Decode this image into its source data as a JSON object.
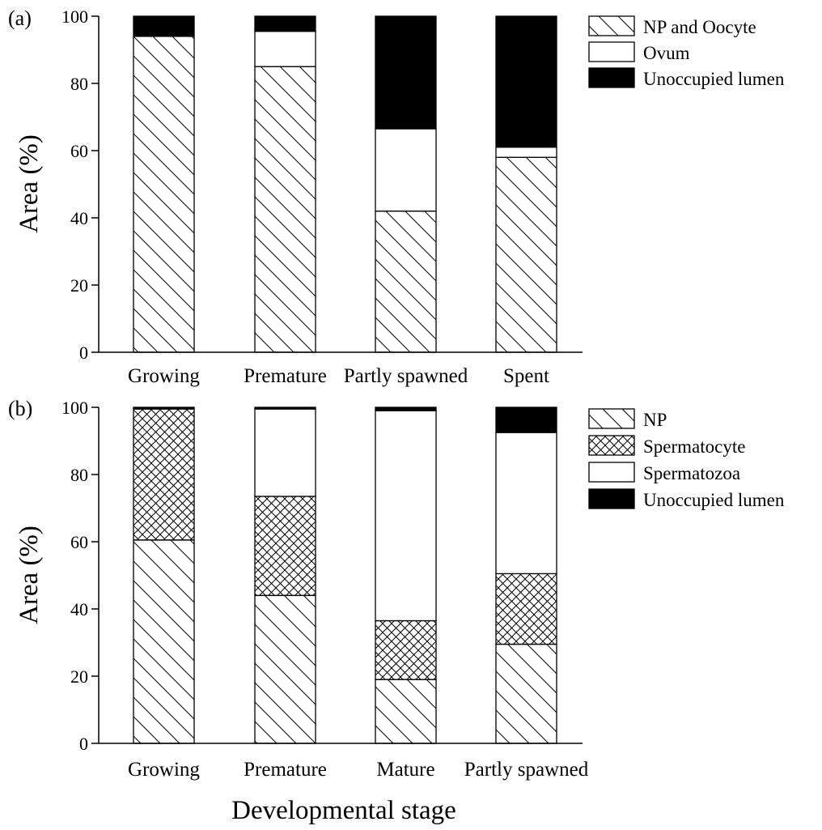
{
  "figure": {
    "xlabel": "Developmental stage"
  },
  "patterns": {
    "hatch": "diagonal",
    "crosshatch": "crosshatch",
    "empty": "empty",
    "solid": "solid"
  },
  "chart_data": [
    {
      "type": "bar",
      "stacked": true,
      "panel_label": "(a)",
      "title": "",
      "xlabel": "",
      "ylabel": "Area (%)",
      "ylim": [
        0,
        100
      ],
      "yticks": [
        0,
        20,
        40,
        60,
        80,
        100
      ],
      "grid": false,
      "legend_position": "top-right",
      "categories": [
        "Growing",
        "Premature",
        "Partly spawned",
        "Spent"
      ],
      "series": [
        {
          "name": "NP and Oocyte",
          "pattern": "diagonal",
          "values": [
            94,
            85,
            42,
            58
          ]
        },
        {
          "name": "Ovum",
          "pattern": "empty",
          "values": [
            0,
            10.5,
            24.5,
            3
          ]
        },
        {
          "name": "Unoccupied lumen",
          "pattern": "solid",
          "values": [
            6,
            4.5,
            33.5,
            39
          ]
        }
      ]
    },
    {
      "type": "bar",
      "stacked": true,
      "panel_label": "(b)",
      "title": "",
      "xlabel": "",
      "ylabel": "Area (%)",
      "ylim": [
        0,
        100
      ],
      "yticks": [
        0,
        20,
        40,
        60,
        80,
        100
      ],
      "grid": false,
      "legend_position": "top-right",
      "categories": [
        "Growing",
        "Premature",
        "Mature",
        "Partly spawned"
      ],
      "series": [
        {
          "name": "NP",
          "pattern": "diagonal",
          "values": [
            60.5,
            44,
            19,
            29.5
          ]
        },
        {
          "name": "Spermatocyte",
          "pattern": "crosshatch",
          "values": [
            39,
            29.5,
            17.5,
            21
          ]
        },
        {
          "name": "Spermatozoa",
          "pattern": "empty",
          "values": [
            0,
            26,
            62.5,
            42
          ]
        },
        {
          "name": "Unoccupied lumen",
          "pattern": "solid",
          "values": [
            0.5,
            0.5,
            1,
            7.5
          ]
        }
      ]
    }
  ]
}
